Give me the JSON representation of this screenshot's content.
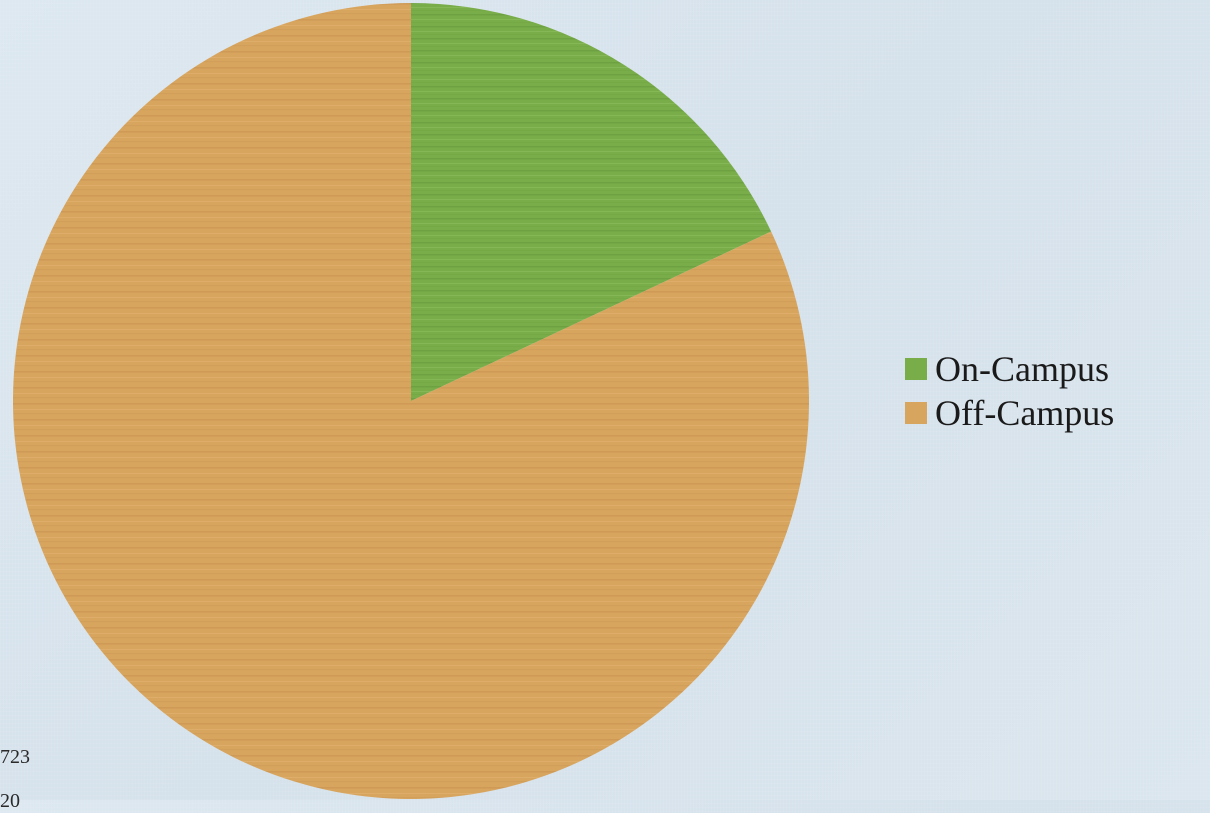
{
  "slide": {
    "background": "#d9e5ee",
    "side_fragments": [
      "723",
      "20"
    ]
  },
  "chart_data": {
    "type": "pie",
    "categories": [
      "On-Campus",
      "Off-Campus"
    ],
    "values": [
      18,
      82
    ],
    "colors": [
      "#79ad4a",
      "#d8a55f"
    ],
    "title": "",
    "legend": {
      "position": "right",
      "entries": [
        "On-Campus",
        "Off-Campus"
      ]
    }
  }
}
